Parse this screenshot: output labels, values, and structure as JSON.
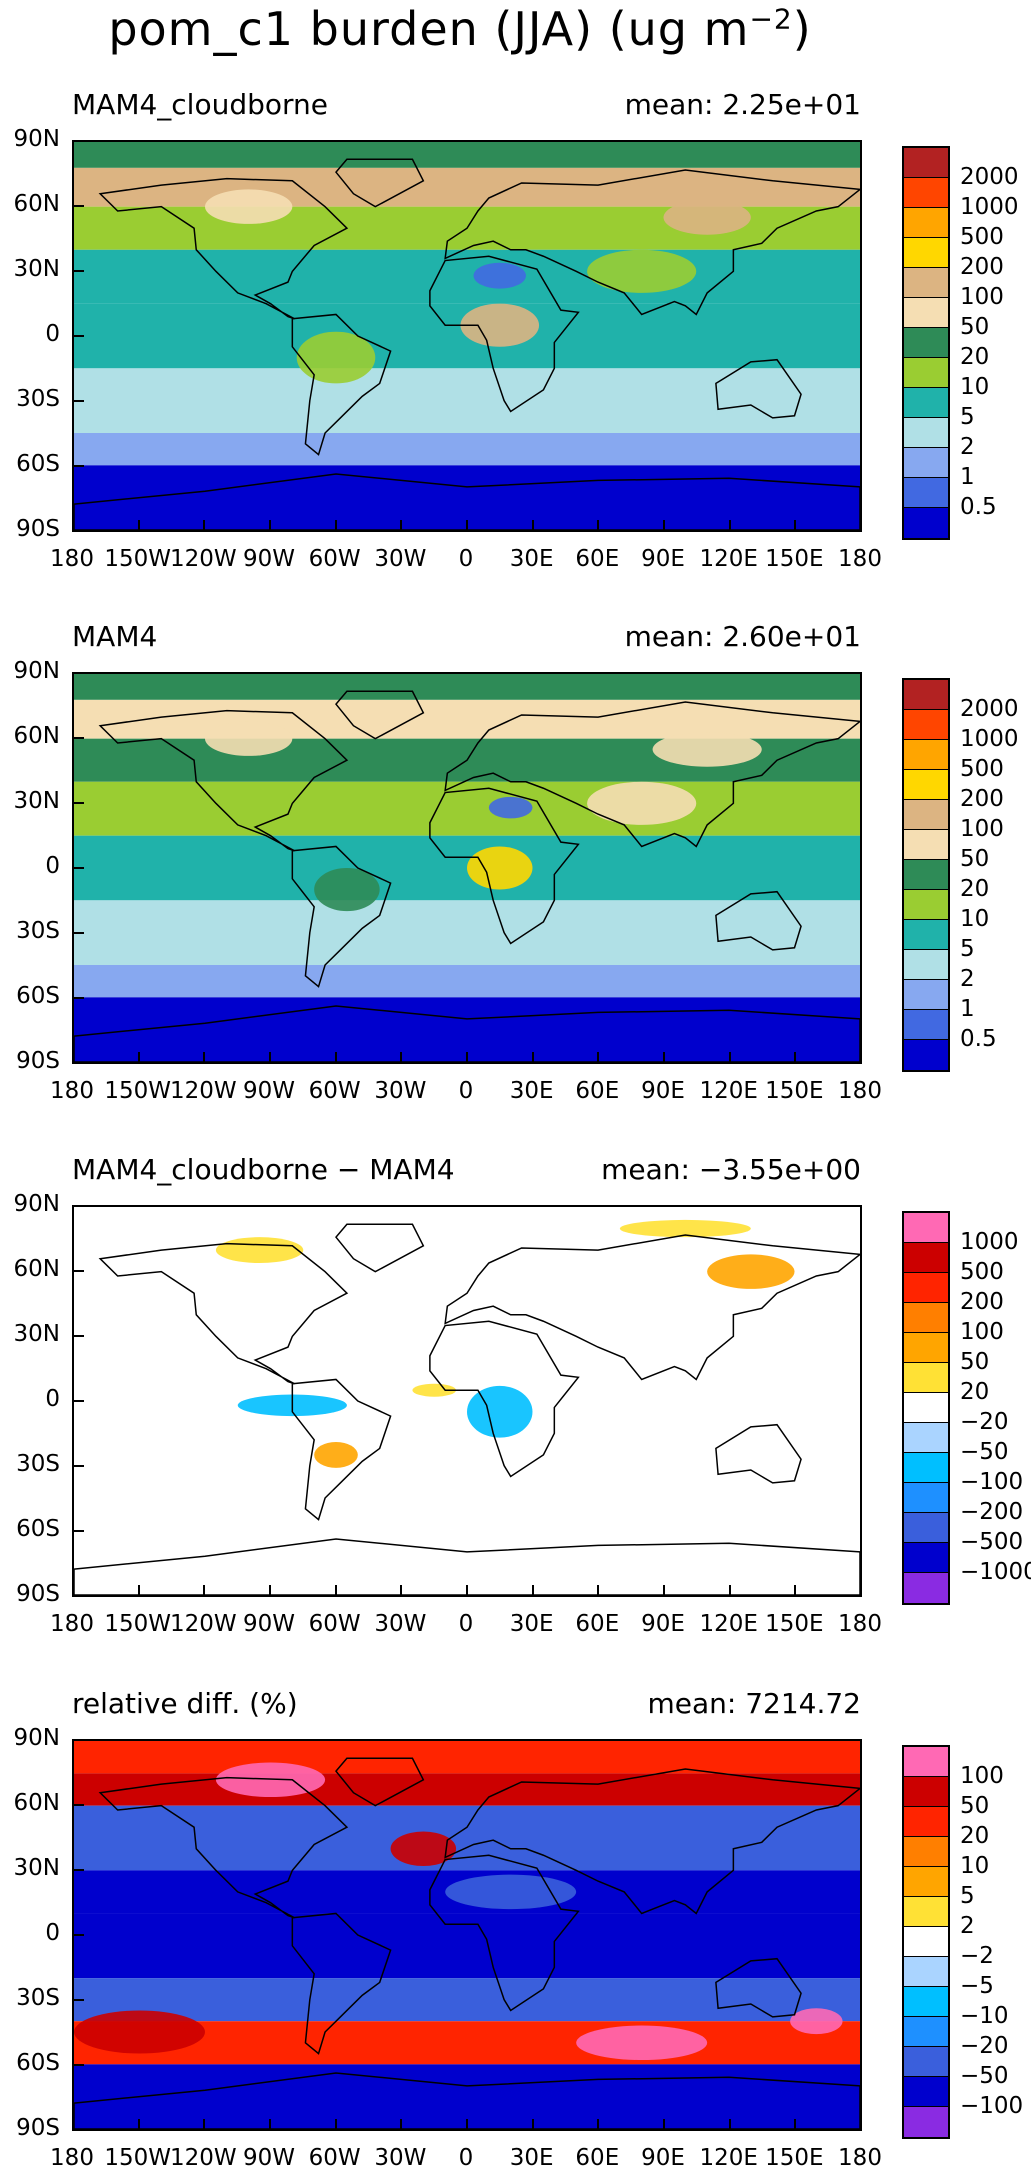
{
  "title": "pom_c1 burden (JJA) (ug m",
  "title_sup": "−2",
  "title_close": ")",
  "y_labels": [
    "90N",
    "60N",
    "30N",
    "0",
    "30S",
    "60S",
    "90S"
  ],
  "x_labels": [
    "180",
    "150W",
    "120W",
    "90W",
    "60W",
    "30W",
    "0",
    "30E",
    "60E",
    "90E",
    "120E",
    "150E",
    "180"
  ],
  "panels": [
    {
      "left": "MAM4_cloudborne",
      "right": "mean: 2.25e+01",
      "legend_labels": [
        "2000",
        "1000",
        "500",
        "200",
        "100",
        "50",
        "20",
        "10",
        "5",
        "2",
        "1",
        "0.5"
      ],
      "legend_colors": [
        "#b22222",
        "#ff4500",
        "#ffa500",
        "#ffd700",
        "#dcb482",
        "#f5deb3",
        "#2e8b57",
        "#9acd32",
        "#20b2aa",
        "#b0e0e6",
        "#87a8f0",
        "#4169e1",
        "#0000cd"
      ],
      "ocean": "#b0e0e6",
      "land": "#2e8b57"
    },
    {
      "left": "MAM4",
      "right": "mean: 2.60e+01",
      "legend_labels": [
        "2000",
        "1000",
        "500",
        "200",
        "100",
        "50",
        "20",
        "10",
        "5",
        "2",
        "1",
        "0.5"
      ],
      "legend_colors": [
        "#b22222",
        "#ff4500",
        "#ffa500",
        "#ffd700",
        "#dcb482",
        "#f5deb3",
        "#2e8b57",
        "#9acd32",
        "#20b2aa",
        "#b0e0e6",
        "#87a8f0",
        "#4169e1",
        "#0000cd"
      ],
      "ocean": "#b0e0e6",
      "land": "#2e8b57"
    },
    {
      "left": "MAM4_cloudborne − MAM4",
      "right": "mean: −3.55e+00",
      "legend_labels": [
        "1000",
        "500",
        "200",
        "100",
        "50",
        "20",
        "−20",
        "−50",
        "−100",
        "−200",
        "−500",
        "−1000"
      ],
      "legend_colors": [
        "#ff69b4",
        "#cc0000",
        "#ff2400",
        "#ff7f00",
        "#ffa500",
        "#ffe135",
        "#ffffff",
        "#aad4ff",
        "#00bfff",
        "#1e90ff",
        "#3a5fdc",
        "#0000cd",
        "#8a2be2"
      ],
      "ocean": "#ffffff",
      "land": "#ffffff"
    },
    {
      "left": "relative diff. (%)",
      "right": "mean: 7214.72",
      "legend_labels": [
        "100",
        "50",
        "20",
        "10",
        "5",
        "2",
        "−2",
        "−5",
        "−10",
        "−20",
        "−50",
        "−100"
      ],
      "legend_colors": [
        "#ff69b4",
        "#cc0000",
        "#ff2400",
        "#ff7f00",
        "#ffa500",
        "#ffe135",
        "#ffffff",
        "#aad4ff",
        "#00bfff",
        "#1e90ff",
        "#3a5fdc",
        "#0000cd",
        "#8a2be2"
      ],
      "ocean": "#3a5fdc",
      "land": "#ff2400"
    }
  ]
}
